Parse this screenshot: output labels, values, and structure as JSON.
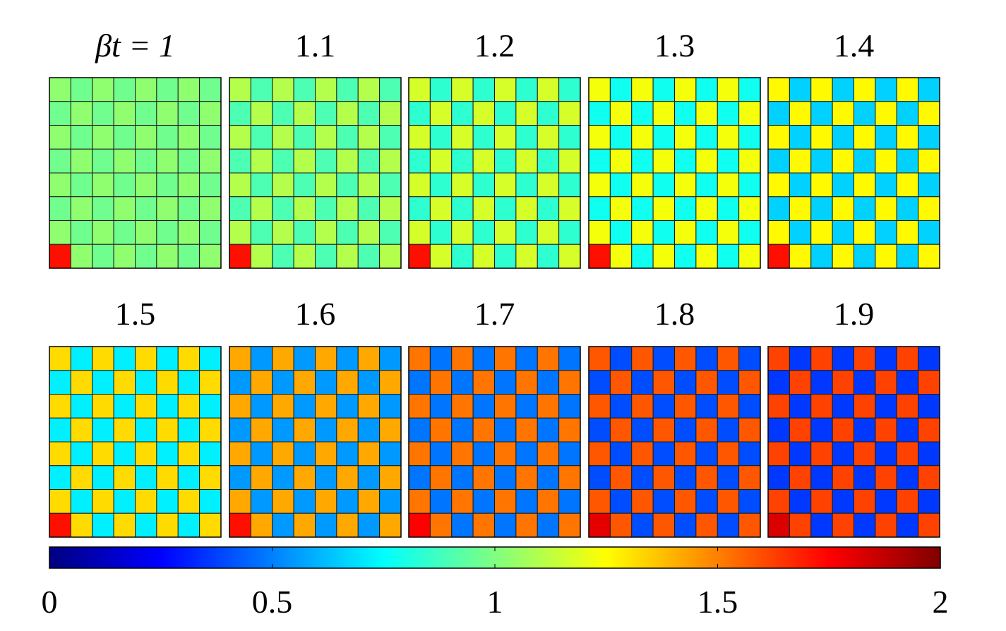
{
  "chart_data": {
    "type": "heatmap",
    "grid_size": 8,
    "title_prefix": "βt = ",
    "panels": [
      {
        "label": "1",
        "value_a": 0.97,
        "value_b": 1.03,
        "corner": 1.72
      },
      {
        "label": "1.1",
        "value_a": 0.9,
        "value_b": 1.1,
        "corner": 1.72
      },
      {
        "label": "1.2",
        "value_a": 0.84,
        "value_b": 1.17,
        "corner": 1.72
      },
      {
        "label": "1.3",
        "value_a": 0.78,
        "value_b": 1.23,
        "corner": 1.72
      },
      {
        "label": "1.4",
        "value_a": 0.66,
        "value_b": 1.26,
        "corner": 1.72
      },
      {
        "label": "1.5",
        "value_a": 0.72,
        "value_b": 1.32,
        "corner": 1.72
      },
      {
        "label": "1.6",
        "value_a": 0.55,
        "value_b": 1.42,
        "corner": 1.72
      },
      {
        "label": "1.7",
        "value_a": 0.48,
        "value_b": 1.52,
        "corner": 1.75
      },
      {
        "label": "1.8",
        "value_a": 0.4,
        "value_b": 1.58,
        "corner": 1.8
      },
      {
        "label": "1.9",
        "value_a": 0.36,
        "value_b": 1.62,
        "corner": 1.82
      }
    ],
    "colorbar": {
      "colormap": "jet",
      "range": [
        0,
        2
      ],
      "ticks": [
        0,
        0.5,
        1,
        1.5,
        2
      ],
      "tick_labels": [
        "0",
        "0.5",
        "1",
        "1.5",
        "2"
      ],
      "orientation": "horizontal",
      "placement": "bottom"
    },
    "grid_lines": true
  }
}
